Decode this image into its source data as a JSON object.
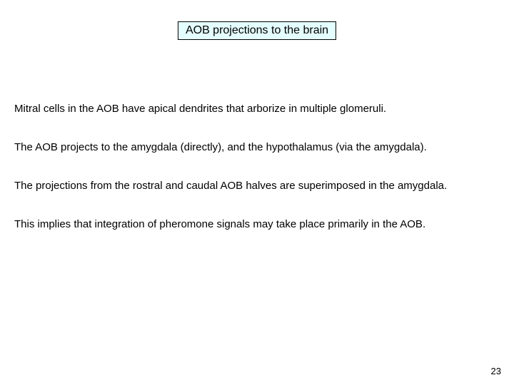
{
  "title": "AOB projections to the brain",
  "paragraphs": [
    "Mitral cells in the AOB have apical dendrites that arborize in multiple glomeruli.",
    "The AOB projects to the amygdala (directly), and the hypothalamus (via the amygdala).",
    "The projections from the rostral and caudal AOB halves are superimposed in the amygdala.",
    "This implies that integration of pheromone signals may take place primarily in the AOB."
  ],
  "page_number": "23",
  "colors": {
    "title_bg": "#e4fdfe",
    "title_border": "#000000",
    "text": "#000000",
    "background": "#ffffff"
  },
  "fontsize": {
    "title": 16,
    "body": 15,
    "page_number": 13
  }
}
